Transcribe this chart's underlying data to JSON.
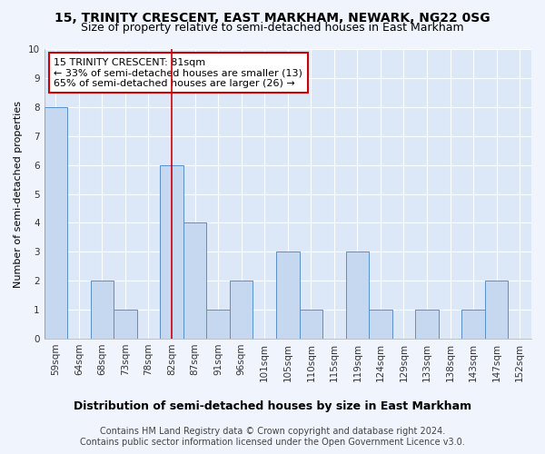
{
  "title": "15, TRINITY CRESCENT, EAST MARKHAM, NEWARK, NG22 0SG",
  "subtitle": "Size of property relative to semi-detached houses in East Markham",
  "xlabel_bottom": "Distribution of semi-detached houses by size in East Markham",
  "ylabel": "Number of semi-detached properties",
  "categories": [
    "59sqm",
    "64sqm",
    "68sqm",
    "73sqm",
    "78sqm",
    "82sqm",
    "87sqm",
    "91sqm",
    "96sqm",
    "101sqm",
    "105sqm",
    "110sqm",
    "115sqm",
    "119sqm",
    "124sqm",
    "129sqm",
    "133sqm",
    "138sqm",
    "143sqm",
    "147sqm",
    "152sqm"
  ],
  "values": [
    8,
    0,
    2,
    1,
    0,
    6,
    4,
    1,
    2,
    0,
    3,
    1,
    0,
    3,
    1,
    0,
    1,
    0,
    1,
    2,
    0
  ],
  "bar_color": "#c5d8f0",
  "bar_edge_color": "#5b8fc9",
  "highlight_bar_index": 5,
  "highlight_line_color": "#cc0000",
  "annotation_box_text": "15 TRINITY CRESCENT: 81sqm\n← 33% of semi-detached houses are smaller (13)\n65% of semi-detached houses are larger (26) →",
  "annotation_box_color": "#ffffff",
  "annotation_box_edge_color": "#cc0000",
  "ylim": [
    0,
    10
  ],
  "yticks": [
    0,
    1,
    2,
    3,
    4,
    5,
    6,
    7,
    8,
    9,
    10
  ],
  "footer1": "Contains HM Land Registry data © Crown copyright and database right 2024.",
  "footer2": "Contains public sector information licensed under the Open Government Licence v3.0.",
  "fig_background_color": "#f0f4fc",
  "plot_bg_color": "#dce8f8",
  "grid_color": "#ffffff",
  "title_fontsize": 10,
  "subtitle_fontsize": 9,
  "axis_label_fontsize": 8,
  "tick_fontsize": 7.5,
  "footer_fontsize": 7,
  "annotation_fontsize": 8
}
